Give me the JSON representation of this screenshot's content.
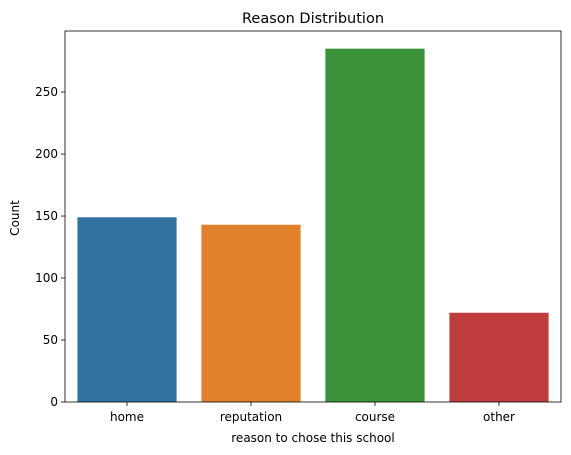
{
  "chart_data": {
    "type": "bar",
    "title": "Reason Distribution",
    "xlabel": "reason to chose this school",
    "ylabel": "Count",
    "categories": [
      "home",
      "reputation",
      "course",
      "other"
    ],
    "values": [
      149,
      143,
      285,
      72
    ],
    "colors": [
      "#3274a1",
      "#e1812c",
      "#3a923a",
      "#c03d3e"
    ],
    "ylim": [
      0,
      299.25
    ],
    "yticks": [
      0,
      50,
      100,
      150,
      200,
      250
    ],
    "grid": false,
    "legend": "none"
  }
}
